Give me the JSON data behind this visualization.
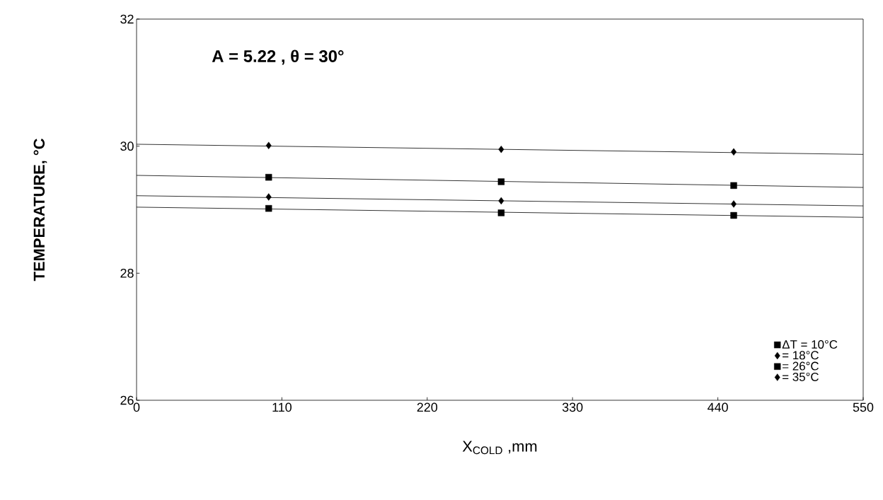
{
  "chart_data": {
    "type": "scatter",
    "xlabel": "X$_{COLD}$ ,mm",
    "ylabel": "TEMPERATURE, °C",
    "annotations": [
      "A  = 5.22 ,  θ = 30°"
    ],
    "xlim": [
      0,
      550
    ],
    "ylim": [
      26,
      32
    ],
    "xticks": [
      0,
      110,
      220,
      330,
      440,
      550
    ],
    "yticks": [
      26,
      28,
      30,
      32
    ],
    "grid": false,
    "legend": "bottom right",
    "series": [
      {
        "name": "ΔT = 10°C",
        "color": "#000000",
        "marker": "square",
        "x": [
          100,
          276,
          452
        ],
        "values": [
          29.02,
          28.95,
          28.91
        ]
      },
      {
        "name": "= 18°C",
        "color": "#000000",
        "marker": "diamond",
        "x": [
          100,
          276,
          452
        ],
        "values": [
          29.2,
          29.14,
          29.09
        ]
      },
      {
        "name": "= 26°C",
        "color": "#000000",
        "marker": "square",
        "x": [
          100,
          276,
          452
        ],
        "values": [
          29.51,
          29.44,
          29.38
        ]
      },
      {
        "name": "= 35°C",
        "color": "#000000",
        "marker": "diamond",
        "x": [
          100,
          276,
          452
        ],
        "values": [
          30.01,
          29.95,
          29.91
        ]
      },
      {
        "type": "line",
        "color": "#000000",
        "marker": "none",
        "x": [
          0,
          550
        ],
        "values": [
          29.04,
          28.88
        ]
      },
      {
        "type": "line",
        "color": "#000000",
        "marker": "none",
        "x": [
          0,
          550
        ],
        "values": [
          29.22,
          29.06
        ]
      },
      {
        "type": "line",
        "color": "#000000",
        "marker": "none",
        "x": [
          0,
          550
        ],
        "values": [
          29.54,
          29.35
        ]
      },
      {
        "type": "line",
        "color": "#000000",
        "marker": "none",
        "x": [
          0,
          550
        ],
        "values": [
          30.03,
          29.87
        ]
      }
    ]
  }
}
